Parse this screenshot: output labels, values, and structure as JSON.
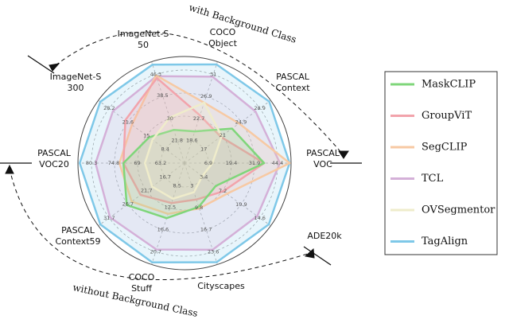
{
  "chart_data": {
    "type": "radar",
    "axes": [
      {
        "label": [
          "ImageNet-S",
          "50"
        ],
        "ticks": [
          21.8,
          30.0,
          38.5,
          46.3
        ]
      },
      {
        "label": [
          "COCO",
          "Object"
        ],
        "ticks": [
          18.6,
          22.7,
          26.9,
          31.0
        ]
      },
      {
        "label": [
          "PASCAL",
          "Context"
        ],
        "ticks": [
          17.0,
          21.0,
          24.9,
          28.9
        ]
      },
      {
        "label": [
          "PASCAL",
          "VOC"
        ],
        "ticks": [
          6.9,
          19.4,
          31.9,
          44.4
        ]
      },
      {
        "label": [
          "ADE20k"
        ],
        "ticks": [
          3.4,
          7.2,
          10.9,
          14.6
        ]
      },
      {
        "label": [
          "Cityscapes"
        ],
        "ticks": [
          3.0,
          9.8,
          16.7,
          23.6
        ]
      },
      {
        "label": [
          "COCO",
          "Stuff"
        ],
        "ticks": [
          8.5,
          12.5,
          16.6,
          20.7
        ]
      },
      {
        "label": [
          "PASCAL",
          "Context59"
        ],
        "ticks": [
          16.7,
          21.7,
          26.7,
          31.7
        ]
      },
      {
        "label": [
          "PASCAL",
          "VOC20"
        ],
        "ticks": [
          63.2,
          69.0,
          74.8,
          80.3
        ]
      },
      {
        "label": [
          "ImageNet-S",
          "300"
        ],
        "ticks": [
          8.4,
          15.0,
          21.6,
          28.2
        ]
      }
    ],
    "series": [
      {
        "name": "MaskCLIP",
        "color": "#7fd67a",
        "values": [
          25.7,
          20.3,
          23.0,
          37.1,
          5.8,
          9.6,
          14.5,
          27.0,
          72.4,
          14.1
        ]
      },
      {
        "name": "GroupViT",
        "color": "#f2a3ab",
        "values": [
          45.0,
          23.3,
          20.6,
          37.1,
          7.3,
          7.3,
          11.7,
          23.3,
          72.4,
          22.5
        ]
      },
      {
        "name": "SegCLIP",
        "color": "#f7c9a3",
        "values": [
          46.0,
          25.7,
          24.5,
          51.0,
          8.0,
          10.1,
          13.7,
          25.7,
          73.4,
          20.2
        ]
      },
      {
        "name": "TCL",
        "color": "#d4b0d8",
        "values": [
          45.7,
          30.6,
          28.0,
          45.7,
          14.1,
          23.0,
          20.3,
          31.5,
          79.3,
          26.9
        ]
      },
      {
        "name": "OVSegmentor",
        "color": "#efeccb",
        "values": [
          30.3,
          25.7,
          20.8,
          9.1,
          3.1,
          5.0,
          10.9,
          20.2,
          67.1,
          12.9
        ]
      },
      {
        "name": "TagAlign",
        "color": "#7ec8e8",
        "values": [
          50.0,
          32.9,
          30.9,
          50.9,
          16.4,
          26.9,
          22.7,
          34.1,
          83.2,
          31.4
        ]
      }
    ],
    "legend_position": "right",
    "annotations": [
      "with Background Class",
      "without Background Class"
    ]
  }
}
